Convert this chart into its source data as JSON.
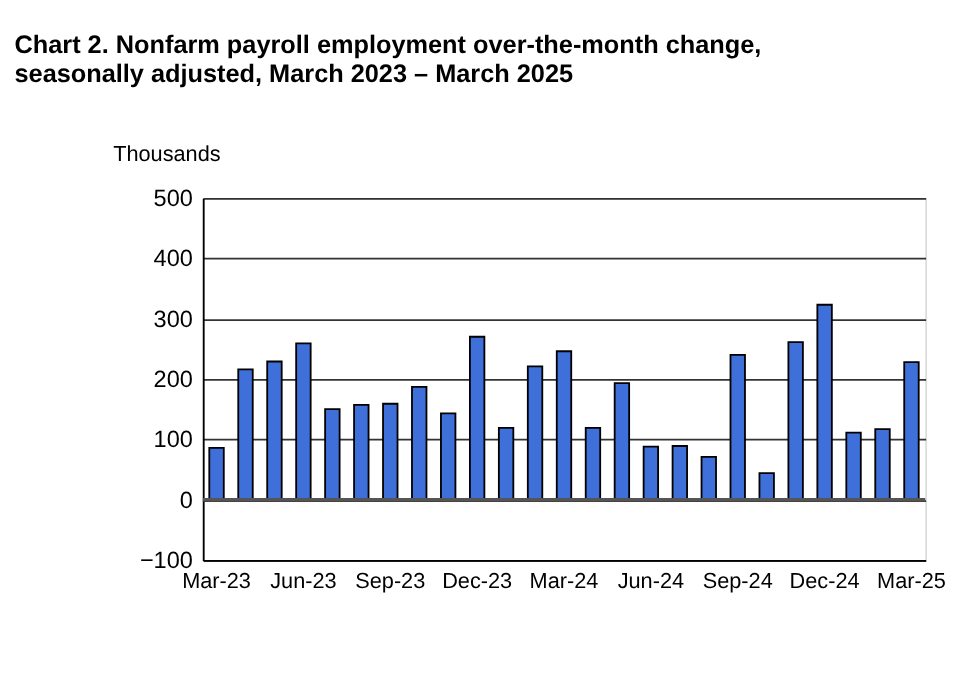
{
  "chart_data": {
    "type": "bar",
    "title": [
      "Chart 2. Nonfarm payroll employment over-the-month change,",
      "seasonally adjusted, March 2023 – March 2025"
    ],
    "ylabel": "Thousands",
    "categories": [
      "Mar-23",
      null,
      null,
      "Jun-23",
      null,
      null,
      "Sep-23",
      null,
      null,
      "Dec-23",
      null,
      null,
      "Mar-24",
      null,
      null,
      "Jun-24",
      null,
      null,
      "Sep-24",
      null,
      null,
      "Dec-24",
      null,
      null,
      "Mar-25"
    ],
    "values": [
      86,
      216,
      229,
      259,
      150,
      157,
      159,
      187,
      143,
      270,
      119,
      221,
      246,
      119,
      193,
      88,
      89,
      71,
      240,
      44,
      261,
      323,
      111,
      117,
      228
    ],
    "color": "#3f6fd8",
    "ylim": [
      -100,
      500
    ],
    "yticks": [
      -100,
      0,
      100,
      200,
      300,
      400,
      500
    ],
    "grid": "y"
  }
}
